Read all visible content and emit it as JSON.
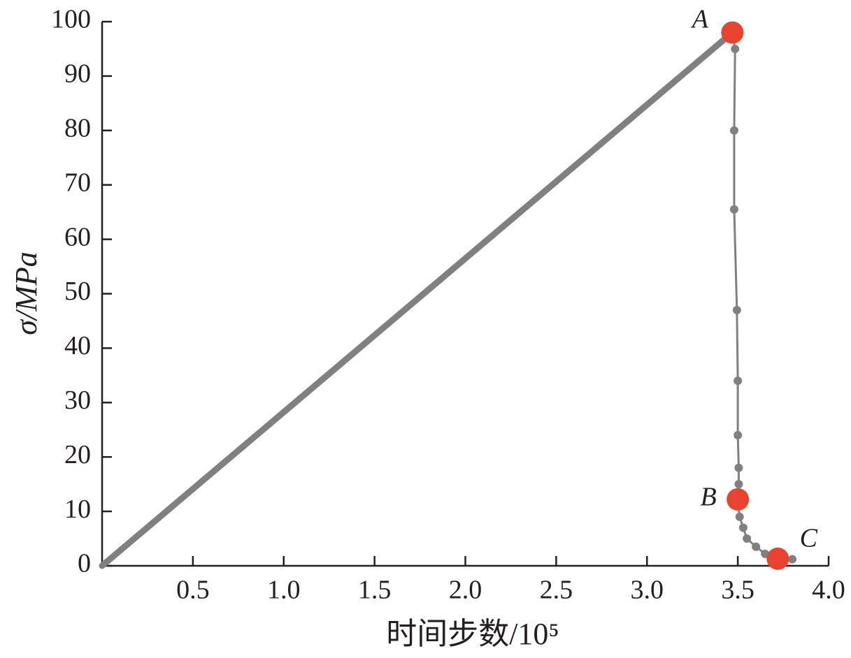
{
  "chart_data": {
    "type": "line",
    "xlabel": "时间步数/10⁵",
    "ylabel": "σ/MPa",
    "xlim": [
      0,
      4
    ],
    "ylim": [
      0,
      100
    ],
    "xticks": [
      0.5,
      {
        "value": 1,
        "label": "1.0"
      },
      1.5,
      {
        "value": 2,
        "label": "2.0"
      },
      2.5,
      {
        "value": 3,
        "label": "3.0"
      },
      3.5,
      {
        "value": 4,
        "label": "4.0"
      }
    ],
    "yticks": [
      0,
      10,
      20,
      30,
      40,
      50,
      60,
      70,
      80,
      90,
      100
    ],
    "series": [
      {
        "color": "#808080",
        "x": [
          0,
          3.47
        ],
        "values": [
          0,
          98
        ]
      },
      {
        "color": "#808080",
        "x": [
          3.47,
          3.485,
          3.48,
          3.48,
          3.495,
          3.5,
          3.5,
          3.505,
          3.505,
          3.5,
          3.51,
          3.53,
          3.55,
          3.6,
          3.65,
          3.72,
          3.8
        ],
        "values": [
          98,
          95,
          80,
          65.5,
          47,
          34,
          24,
          18,
          15,
          12.2,
          9,
          7,
          5,
          3.5,
          2.2,
          1.3,
          1.2
        ]
      }
    ],
    "annotations": [
      {
        "text": "A",
        "x": 3.47,
        "y": 98
      },
      {
        "text": "B",
        "x": 3.5,
        "y": 12.2
      },
      {
        "text": "C",
        "x": 3.72,
        "y": 1.3
      }
    ],
    "highlight_color": "#e8432e"
  }
}
